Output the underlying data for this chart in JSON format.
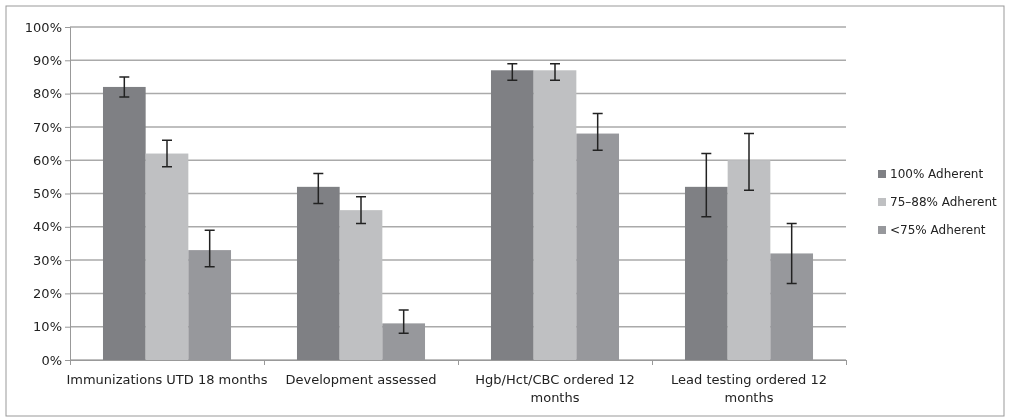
{
  "chart_data": {
    "type": "bar",
    "categories": [
      "Immunizations UTD 18 months",
      "Development assessed",
      "Hgb/Hct/CBC ordered 12 months",
      "Lead testing ordered 12 months"
    ],
    "series": [
      {
        "name": "100% Adherent",
        "color": "#7f8084",
        "values": [
          82,
          52,
          87,
          52
        ],
        "errors": [
          [
            79,
            85
          ],
          [
            47,
            56
          ],
          [
            84,
            89
          ],
          [
            43,
            62
          ]
        ]
      },
      {
        "name": "75–88% Adherent",
        "color": "#bfc0c2",
        "values": [
          62,
          45,
          87,
          60
        ],
        "errors": [
          [
            58,
            66
          ],
          [
            41,
            49
          ],
          [
            84,
            89
          ],
          [
            51,
            68
          ]
        ]
      },
      {
        "name": "<75% Adherent",
        "color": "#97989c",
        "values": [
          33,
          11,
          68,
          32
        ],
        "errors": [
          [
            28,
            39
          ],
          [
            8,
            15
          ],
          [
            63,
            74
          ],
          [
            23,
            41
          ]
        ]
      }
    ],
    "ylim": [
      0,
      100
    ],
    "yticks": [
      {
        "value": 0,
        "label": "0%"
      },
      {
        "value": 10,
        "label": "10%"
      },
      {
        "value": 20,
        "label": "20%"
      },
      {
        "value": 30,
        "label": "30%"
      },
      {
        "value": 40,
        "label": "40%"
      },
      {
        "value": 50,
        "label": "50%"
      },
      {
        "value": 60,
        "label": "60%"
      },
      {
        "value": 70,
        "label": "70%"
      },
      {
        "value": 80,
        "label": "80%"
      },
      {
        "value": 90,
        "label": "90%"
      },
      {
        "value": 100,
        "label": "100%"
      }
    ],
    "grid": "y",
    "legend": "right"
  }
}
